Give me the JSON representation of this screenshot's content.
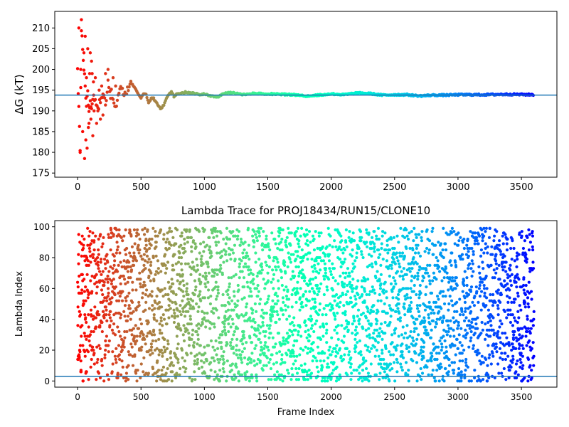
{
  "chart_data": [
    {
      "type": "scatter",
      "title": "",
      "xlabel": "",
      "ylabel": "ΔG (kT)",
      "xlim": [
        -180,
        3780
      ],
      "ylim": [
        174,
        214
      ],
      "xticks": [
        0,
        500,
        1000,
        1500,
        2000,
        2500,
        3000,
        3500
      ],
      "yticks": [
        175,
        180,
        185,
        190,
        195,
        200,
        205,
        210
      ],
      "grid": false,
      "colormap": "rainbow",
      "color_by": "x",
      "hline": 193.8,
      "hline_color": "#1f77b4",
      "trace": [
        [
          0,
          200
        ],
        [
          10,
          190
        ],
        [
          20,
          180
        ],
        [
          30,
          210
        ],
        [
          40,
          204
        ],
        [
          50,
          200
        ],
        [
          60,
          196
        ],
        [
          70,
          192
        ],
        [
          80,
          194
        ],
        [
          90,
          189
        ],
        [
          100,
          193
        ],
        [
          110,
          190
        ],
        [
          120,
          194
        ],
        [
          140,
          192
        ],
        [
          160,
          191
        ],
        [
          180,
          193
        ],
        [
          200,
          194
        ],
        [
          220,
          192
        ],
        [
          240,
          197
        ],
        [
          260,
          195
        ],
        [
          280,
          193
        ],
        [
          300,
          191
        ],
        [
          320,
          194
        ],
        [
          340,
          195
        ],
        [
          360,
          195
        ],
        [
          380,
          194
        ],
        [
          400,
          195
        ],
        [
          420,
          197
        ],
        [
          440,
          196
        ],
        [
          460,
          195
        ],
        [
          480,
          194
        ],
        [
          500,
          193
        ],
        [
          520,
          194
        ],
        [
          540,
          194
        ],
        [
          560,
          192
        ],
        [
          580,
          193
        ],
        [
          600,
          193
        ],
        [
          620,
          192
        ],
        [
          640,
          191
        ],
        [
          660,
          190.5
        ],
        [
          680,
          191.5
        ],
        [
          700,
          193
        ],
        [
          720,
          194
        ],
        [
          740,
          194.5
        ],
        [
          760,
          193.5
        ],
        [
          780,
          194
        ],
        [
          800,
          194
        ],
        [
          850,
          194.5
        ],
        [
          900,
          194.3
        ],
        [
          950,
          194
        ],
        [
          1000,
          194
        ],
        [
          1050,
          193.6
        ],
        [
          1100,
          193.2
        ],
        [
          1150,
          194.2
        ],
        [
          1200,
          194.4
        ],
        [
          1300,
          194
        ],
        [
          1400,
          194.2
        ],
        [
          1500,
          194.1
        ],
        [
          1600,
          194
        ],
        [
          1700,
          193.9
        ],
        [
          1800,
          193.6
        ],
        [
          1900,
          193.8
        ],
        [
          2000,
          194.1
        ],
        [
          2100,
          193.9
        ],
        [
          2200,
          194.3
        ],
        [
          2300,
          194.2
        ],
        [
          2400,
          193.8
        ],
        [
          2500,
          193.9
        ],
        [
          2600,
          193.9
        ],
        [
          2700,
          193.6
        ],
        [
          2800,
          193.8
        ],
        [
          2900,
          193.8
        ],
        [
          3000,
          193.9
        ],
        [
          3200,
          193.9
        ],
        [
          3400,
          194
        ],
        [
          3600,
          193.9
        ]
      ],
      "early_scatter": [
        [
          10,
          210
        ],
        [
          20,
          180
        ],
        [
          25,
          200
        ],
        [
          30,
          212
        ],
        [
          40,
          185
        ],
        [
          50,
          204
        ],
        [
          55,
          178.5
        ],
        [
          60,
          208
        ],
        [
          65,
          183
        ],
        [
          70,
          198
        ],
        [
          75,
          181
        ],
        [
          80,
          205
        ],
        [
          85,
          186
        ],
        [
          90,
          187
        ],
        [
          95,
          199
        ],
        [
          100,
          204
        ],
        [
          105,
          188
        ],
        [
          110,
          202
        ],
        [
          115,
          199
        ],
        [
          120,
          184
        ],
        [
          125,
          197
        ],
        [
          130,
          190
        ],
        [
          140,
          198
        ],
        [
          150,
          187
        ],
        [
          160,
          190
        ],
        [
          170,
          195
        ],
        [
          180,
          188
        ],
        [
          190,
          196
        ],
        [
          200,
          189
        ],
        [
          220,
          199
        ],
        [
          240,
          200
        ],
        [
          260,
          193
        ],
        [
          280,
          198
        ],
        [
          300,
          196
        ]
      ]
    },
    {
      "type": "scatter",
      "title": "Lambda Trace for PROJ18434/RUN15/CLONE10",
      "xlabel": "Frame Index",
      "ylabel": "Lambda Index",
      "xlim": [
        -180,
        3780
      ],
      "ylim": [
        -4,
        104
      ],
      "xticks": [
        0,
        500,
        1000,
        1500,
        2000,
        2500,
        3000,
        3500
      ],
      "yticks": [
        0,
        20,
        40,
        60,
        80,
        100
      ],
      "grid": false,
      "colormap": "rainbow",
      "color_by": "x",
      "hline": 3,
      "hline_color": "#1f77b4",
      "n_frames": 3600,
      "lambda_min": 0,
      "lambda_max": 99
    }
  ]
}
